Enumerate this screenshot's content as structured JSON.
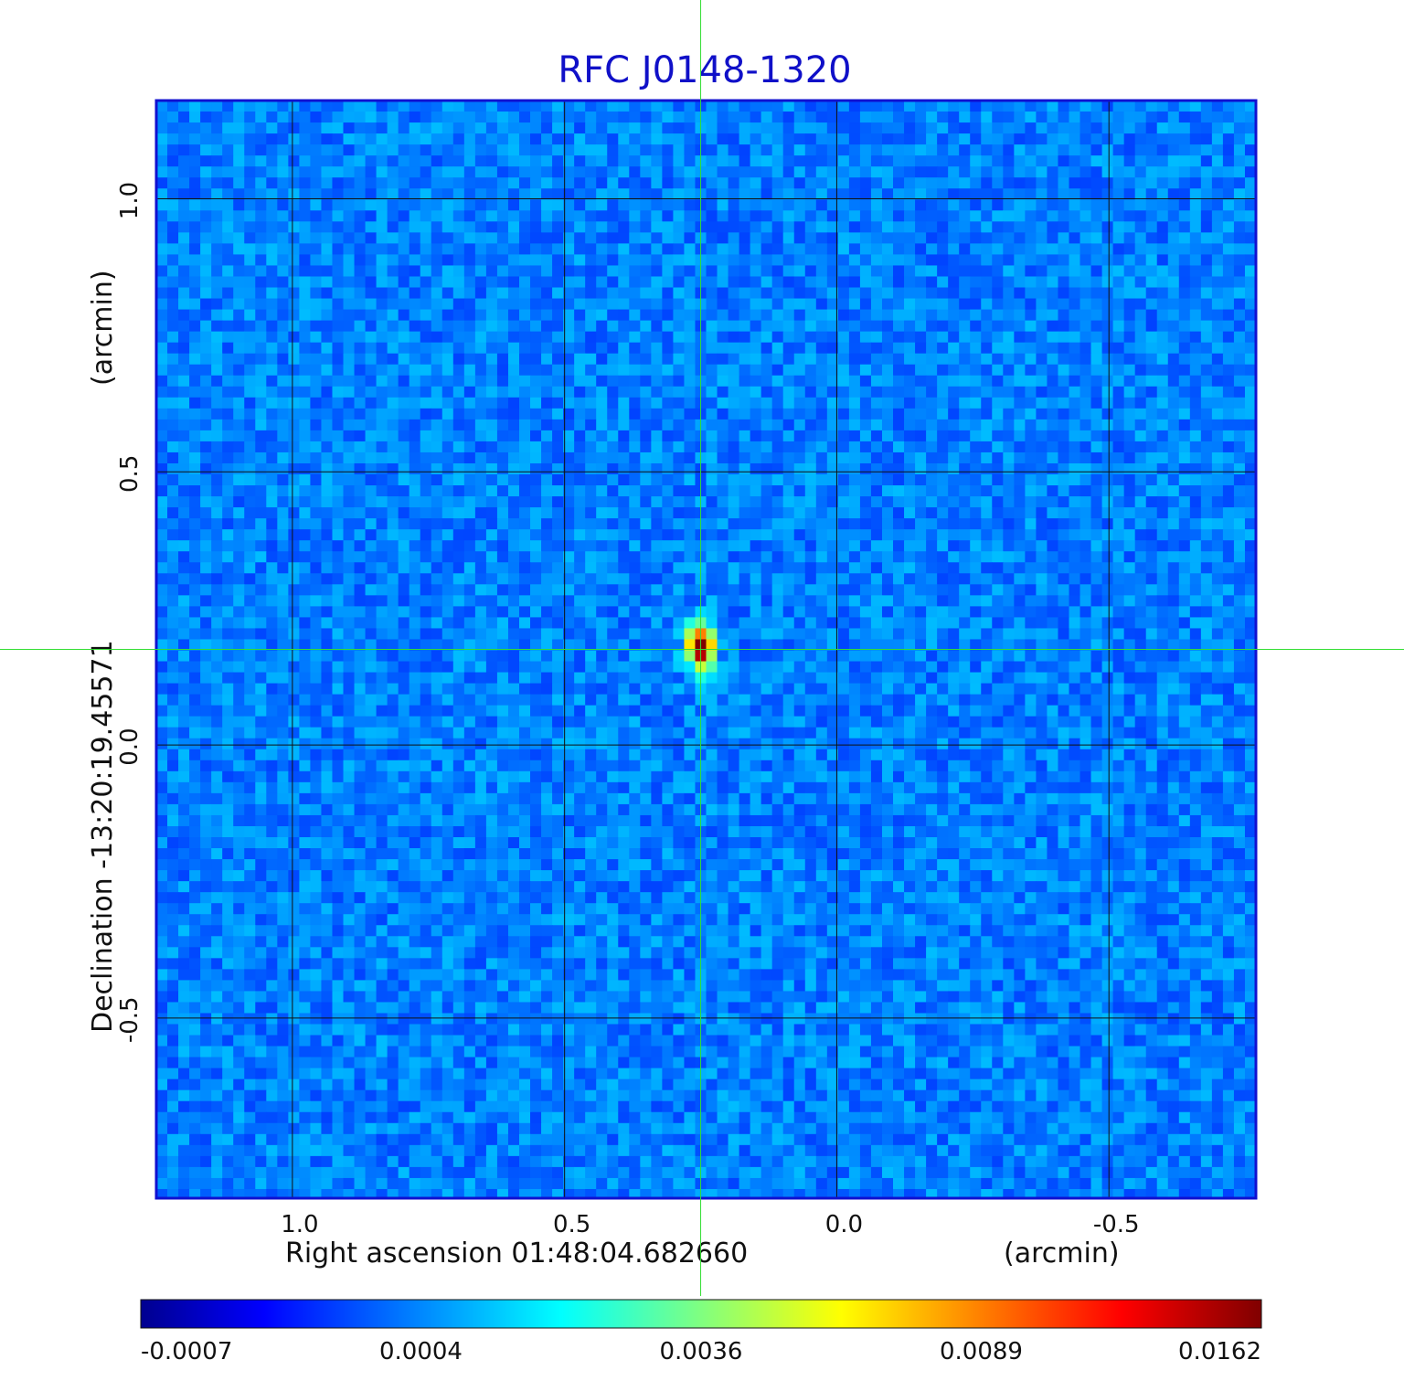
{
  "chart_data": {
    "type": "heatmap",
    "title": "RFC J0148-1320",
    "xlabel": "Right ascension  01:48:04.682660",
    "xunit": "(arcmin)",
    "ylabel": "Declination  -13:20:19.45571",
    "yunit": "(arcmin)",
    "xlim": [
      1.25,
      -0.77
    ],
    "ylim": [
      -0.83,
      1.18
    ],
    "x_ticks": [
      "1.0",
      "0.5",
      "0.0",
      "-0.5"
    ],
    "x_tick_values": [
      1.0,
      0.5,
      0.0,
      -0.5
    ],
    "y_ticks": [
      "1.0",
      "0.5",
      "0.0",
      "-0.5"
    ],
    "y_tick_values": [
      1.0,
      0.5,
      0.0,
      -0.5
    ],
    "grid": true,
    "crosshair": {
      "x": 0.25,
      "y": 0.175,
      "color": "#33dd33"
    },
    "peak": {
      "x": 0.25,
      "y": 0.18
    },
    "colormap": "jet",
    "colorbar": {
      "ticks": [
        "-0.0007",
        "0.0004",
        "0.0036",
        "0.0089",
        "0.0162"
      ],
      "min": -0.0007,
      "max": 0.0162
    }
  }
}
